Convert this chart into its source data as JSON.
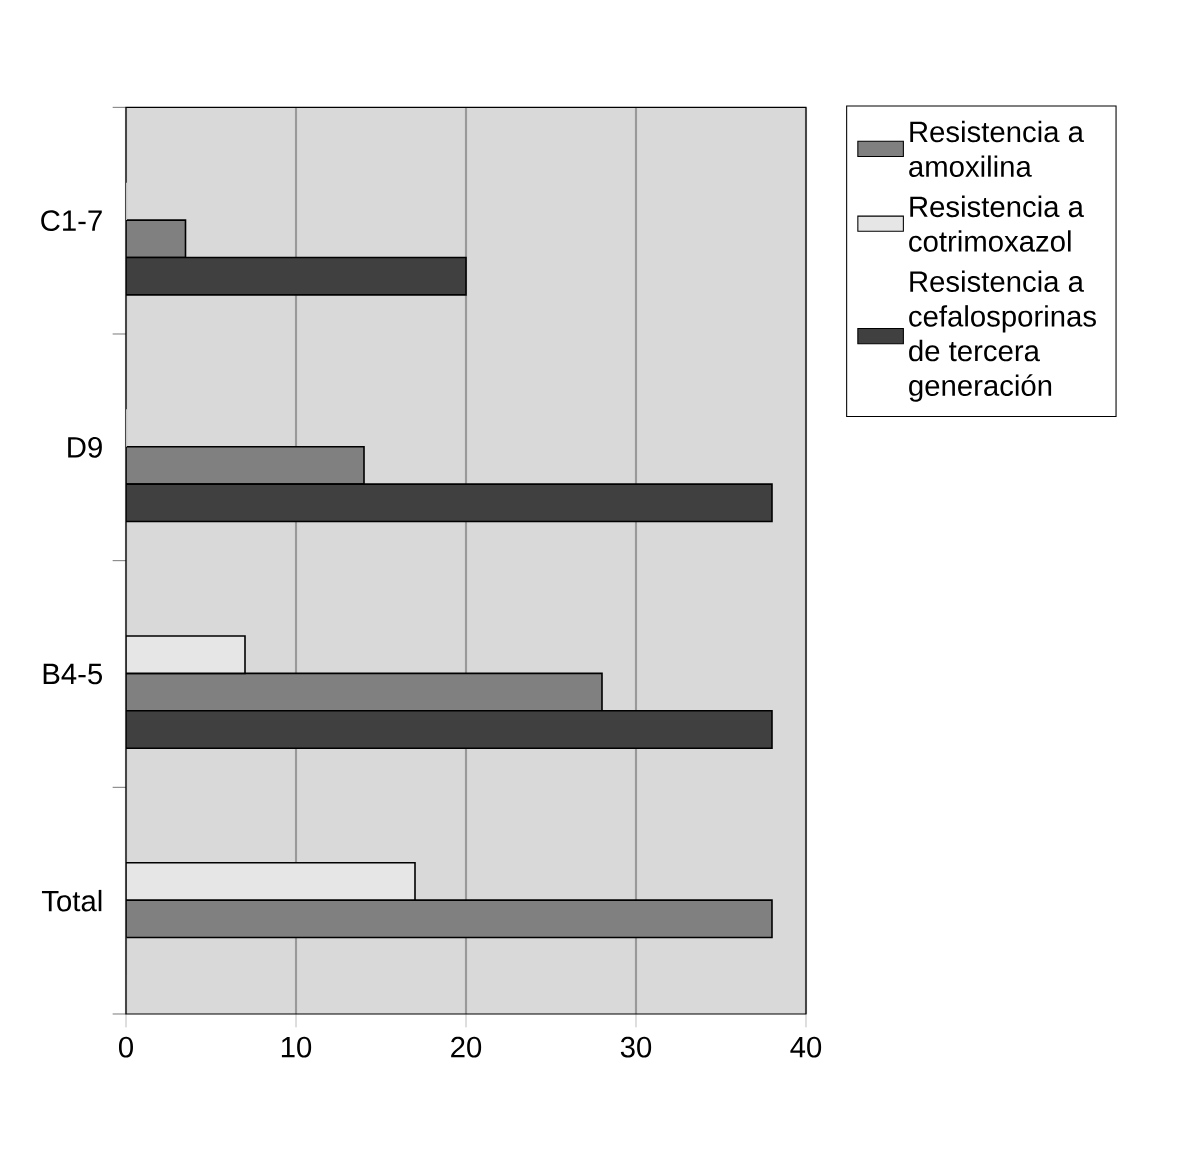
{
  "chart_data": {
    "type": "bar",
    "orientation": "horizontal",
    "categories": [
      "C1-7",
      "D9",
      "B4-5",
      "Total"
    ],
    "series": [
      {
        "name": "Resistencia a amoxilina",
        "color": "#808080",
        "values": [
          3.5,
          14,
          28,
          38
        ]
      },
      {
        "name": "Resistencia a cotrimoxazol",
        "color": "#e6e6e6",
        "values": [
          0,
          0,
          7,
          17
        ]
      },
      {
        "name": "Resistencia a cefalosporinas de tercera generación",
        "color": "#404040",
        "values": [
          20,
          38,
          38,
          0
        ]
      }
    ],
    "xlim": [
      0,
      40
    ],
    "xticks": [
      0,
      10,
      20,
      30,
      40
    ],
    "grid": "x",
    "legend": "right"
  }
}
